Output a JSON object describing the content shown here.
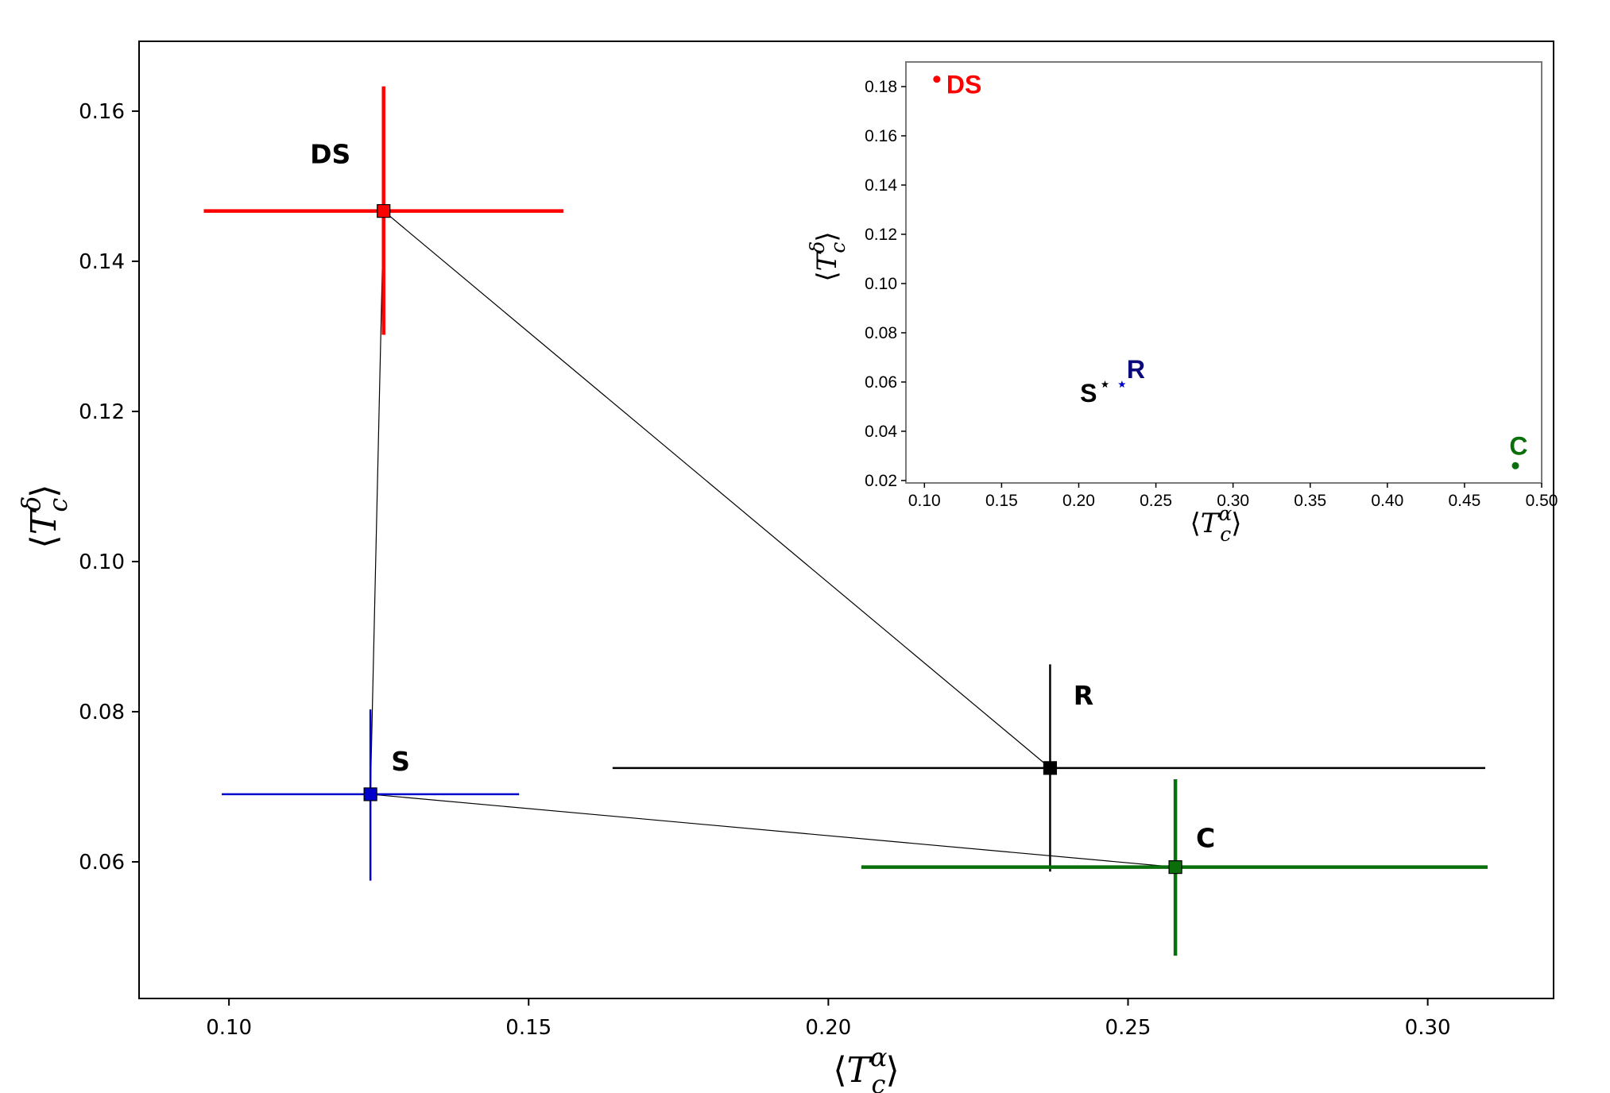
{
  "chart_data": [
    {
      "type": "scatter",
      "xlabel": {
        "base": "T",
        "sub": "c",
        "sup": "α"
      },
      "ylabel": {
        "base": "T",
        "sub": "c",
        "sup": "δ"
      },
      "xlim": [
        0.085,
        0.321
      ],
      "ylim": [
        0.0418,
        0.1693
      ],
      "xticks": [
        0.1,
        0.15,
        0.2,
        0.25,
        0.3
      ],
      "xtick_labels": [
        "0.10",
        "0.15",
        "0.20",
        "0.25",
        "0.30"
      ],
      "yticks": [
        0.06,
        0.08,
        0.1,
        0.12,
        0.14,
        0.16
      ],
      "ytick_labels": [
        "0.06",
        "0.08",
        "0.10",
        "0.12",
        "0.14",
        "0.16"
      ],
      "grid": false,
      "points": [
        {
          "label": "DS",
          "x": 0.1258,
          "y": 0.1467,
          "xerr": [
            0.0958,
            0.1558
          ],
          "yerr": [
            0.1302,
            0.1633
          ],
          "color": "#ff0000",
          "label_color": "#000000",
          "lw": 4.5
        },
        {
          "label": "S",
          "x": 0.1236,
          "y": 0.069,
          "xerr": [
            0.0988,
            0.1484
          ],
          "yerr": [
            0.0575,
            0.0803
          ],
          "color": "#0000cc",
          "label_color": "#000000",
          "lw": 2.5
        },
        {
          "label": "R",
          "x": 0.237,
          "y": 0.0725,
          "xerr": [
            0.164,
            0.3096
          ],
          "yerr": [
            0.0587,
            0.0863
          ],
          "color": "#000000",
          "label_color": "#000000",
          "lw": 2.5
        },
        {
          "label": "C",
          "x": 0.2579,
          "y": 0.0593,
          "xerr": [
            0.2055,
            0.31
          ],
          "yerr": [
            0.0475,
            0.071
          ],
          "color": "#0a6e0a",
          "label_color": "#000000",
          "lw": 4.5
        }
      ],
      "connections": [
        [
          "DS",
          "S"
        ],
        [
          "DS",
          "R"
        ],
        [
          "S",
          "C"
        ]
      ]
    },
    {
      "type": "scatter",
      "xlabel": {
        "base": "T",
        "sub": "c",
        "sup": "α"
      },
      "ylabel": {
        "base": "T",
        "sub": "c",
        "sup": "δ"
      },
      "xlim": [
        0.088,
        0.5
      ],
      "ylim": [
        0.019,
        0.19
      ],
      "xticks": [
        0.1,
        0.15,
        0.2,
        0.25,
        0.3,
        0.35,
        0.4,
        0.45,
        0.5
      ],
      "xtick_labels": [
        "0.10",
        "0.15",
        "0.20",
        "0.25",
        "0.30",
        "0.35",
        "0.40",
        "0.45",
        "0.50"
      ],
      "yticks": [
        0.02,
        0.04,
        0.06,
        0.08,
        0.1,
        0.12,
        0.14,
        0.16,
        0.18
      ],
      "ytick_labels": [
        "0.02",
        "0.04",
        "0.06",
        "0.08",
        "0.10",
        "0.12",
        "0.14",
        "0.16",
        "0.18"
      ],
      "grid": false,
      "points": [
        {
          "label": "DS",
          "x": 0.108,
          "y": 0.183,
          "color": "#ff0000",
          "marker": "dot"
        },
        {
          "label": "S",
          "x": 0.217,
          "y": 0.059,
          "color": "#000000",
          "marker": "star"
        },
        {
          "label": "R",
          "x": 0.228,
          "y": 0.059,
          "color": "#0000cc",
          "label_color": "#0a0a7a",
          "marker": "star"
        },
        {
          "label": "C",
          "x": 0.483,
          "y": 0.026,
          "color": "#0a6e0a",
          "marker": "dot"
        }
      ]
    }
  ]
}
